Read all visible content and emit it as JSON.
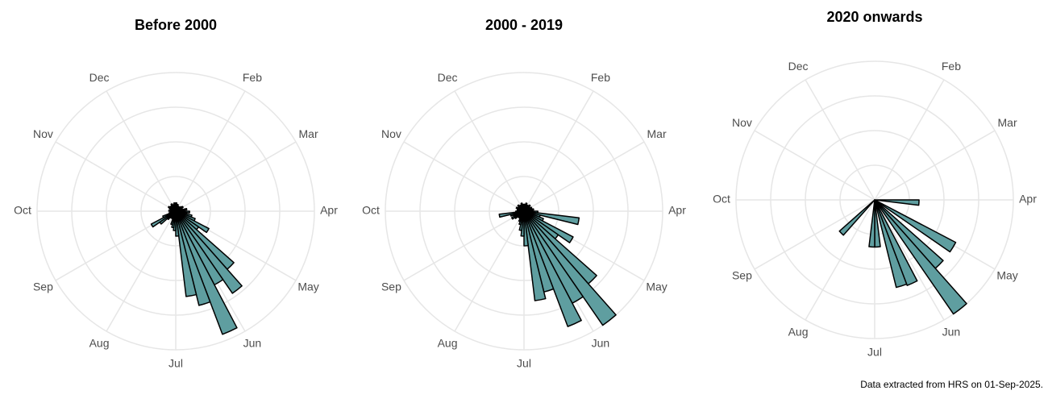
{
  "chart_data": [
    {
      "type": "polar_bar",
      "title": "Before 2000",
      "color": "#5f9ea0",
      "x": [
        0.5,
        1.5,
        2.5,
        3.5,
        4.5,
        5.5,
        6.5,
        7.5,
        8.5,
        9.5,
        10.5,
        11.5,
        12.5,
        13.5,
        14.5,
        15.5,
        16.5,
        17.5,
        18.5,
        19.5,
        20.5,
        21.5,
        22.5,
        23.5,
        24.5,
        25.5,
        26.5,
        27.5,
        28.5,
        29.5,
        30.5,
        31.5,
        32.5,
        33.5,
        34.5,
        35.5,
        36.5,
        37.5,
        38.5,
        39.5,
        40.5,
        41.5,
        42.5,
        43.5,
        44.5,
        45.5,
        46.5,
        47.5,
        48.5,
        49.5,
        50.5,
        51.5
      ],
      "values": [
        6,
        5,
        5,
        4,
        4,
        3,
        4,
        5,
        6,
        5,
        4,
        8,
        6,
        10,
        8,
        12,
        15,
        27,
        20,
        56,
        72,
        60,
        95,
        70,
        62,
        18,
        14,
        12,
        10,
        6,
        5,
        6,
        8,
        14,
        20,
        10,
        5,
        4,
        4,
        5,
        4,
        3,
        5,
        6,
        4,
        5,
        4,
        6,
        5,
        4,
        6,
        5
      ],
      "xlim": [
        0,
        52
      ],
      "xticks": [
        {
          "value": 4.33,
          "label": "Feb"
        },
        {
          "value": 8.67,
          "label": "Mar"
        },
        {
          "value": 13,
          "label": "Apr"
        },
        {
          "value": 17.33,
          "label": "May"
        },
        {
          "value": 21.67,
          "label": "Jun"
        },
        {
          "value": 26,
          "label": "Jul"
        },
        {
          "value": 30.33,
          "label": "Aug"
        },
        {
          "value": 34.67,
          "label": "Sep"
        },
        {
          "value": 39,
          "label": "Oct"
        },
        {
          "value": 43.33,
          "label": "Nov"
        },
        {
          "value": 47.67,
          "label": "Dec"
        }
      ],
      "ylim": [
        0,
        100
      ],
      "yticks": [
        25,
        50,
        75,
        100
      ],
      "grid": true
    },
    {
      "type": "polar_bar",
      "title": "2000 - 2019",
      "color": "#5f9ea0",
      "x": [
        0.5,
        1.5,
        2.5,
        3.5,
        4.5,
        5.5,
        6.5,
        7.5,
        8.5,
        9.5,
        10.5,
        11.5,
        12.5,
        13.5,
        14.5,
        15.5,
        16.5,
        17.5,
        18.5,
        19.5,
        20.5,
        21.5,
        22.5,
        23.5,
        24.5,
        25.5,
        26.5,
        27.5,
        28.5,
        29.5,
        30.5,
        31.5,
        32.5,
        33.5,
        34.5,
        35.5,
        36.5,
        37.5,
        38.5,
        39.5,
        40.5,
        41.5,
        42.5,
        43.5,
        44.5,
        45.5,
        46.5,
        47.5,
        48.5,
        49.5,
        50.5,
        51.5
      ],
      "values": [
        5,
        4,
        6,
        5,
        4,
        5,
        6,
        4,
        5,
        6,
        5,
        7,
        6,
        10,
        40,
        12,
        15,
        40,
        30,
        70,
        100,
        75,
        89,
        60,
        65,
        25,
        18,
        14,
        10,
        8,
        6,
        5,
        6,
        8,
        10,
        8,
        10,
        18,
        6,
        5,
        4,
        5,
        6,
        4,
        5,
        6,
        5,
        4,
        5,
        6,
        5,
        4
      ],
      "xlim": [
        0,
        52
      ],
      "xticks": [
        {
          "value": 4.33,
          "label": "Feb"
        },
        {
          "value": 8.67,
          "label": "Mar"
        },
        {
          "value": 13,
          "label": "Apr"
        },
        {
          "value": 17.33,
          "label": "May"
        },
        {
          "value": 21.67,
          "label": "Jun"
        },
        {
          "value": 26,
          "label": "Jul"
        },
        {
          "value": 30.33,
          "label": "Aug"
        },
        {
          "value": 34.67,
          "label": "Sep"
        },
        {
          "value": 39,
          "label": "Oct"
        },
        {
          "value": 43.33,
          "label": "Nov"
        },
        {
          "value": 47.67,
          "label": "Dec"
        }
      ],
      "ylim": [
        0,
        100
      ],
      "yticks": [
        25,
        50,
        75,
        100
      ],
      "grid": true
    },
    {
      "type": "polar_bar",
      "title": "2020 onwards",
      "color": "#5f9ea0",
      "x": [
        13.5,
        17.5,
        19.5,
        20.5,
        22.5,
        23.5,
        25.5,
        26.5,
        32.5
      ],
      "values": [
        32,
        66,
        66,
        100,
        66,
        65,
        34,
        34,
        34
      ],
      "xlim": [
        0,
        52
      ],
      "xticks": [
        {
          "value": 4.33,
          "label": "Feb"
        },
        {
          "value": 8.67,
          "label": "Mar"
        },
        {
          "value": 13,
          "label": "Apr"
        },
        {
          "value": 17.33,
          "label": "May"
        },
        {
          "value": 21.67,
          "label": "Jun"
        },
        {
          "value": 26,
          "label": "Jul"
        },
        {
          "value": 30.33,
          "label": "Aug"
        },
        {
          "value": 34.67,
          "label": "Sep"
        },
        {
          "value": 39,
          "label": "Oct"
        },
        {
          "value": 43.33,
          "label": "Nov"
        },
        {
          "value": 47.67,
          "label": "Dec"
        }
      ],
      "ylim": [
        0,
        100
      ],
      "yticks": [
        25,
        50,
        75,
        100
      ],
      "grid": true
    }
  ],
  "caption": "Data extracted from HRS on 01-Sep-2025."
}
